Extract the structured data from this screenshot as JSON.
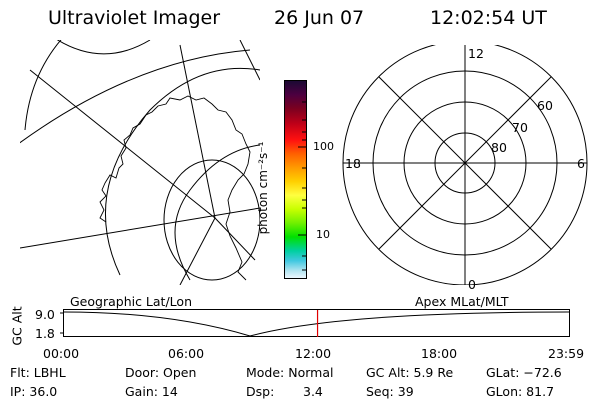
{
  "header": {
    "title": "Ultraviolet Imager",
    "date": "26 Jun 07",
    "time": "12:02:54 UT"
  },
  "colorbar": {
    "label": "photon cm⁻²s⁻¹",
    "tick_100": "100",
    "tick_10": "10",
    "stops": [
      "#1a0a33",
      "#4b0040",
      "#7a0020",
      "#c00018",
      "#ff1010",
      "#ff6000",
      "#ff9a00",
      "#ffd000",
      "#ffff40",
      "#c8ff00",
      "#70f000",
      "#00e000",
      "#00d0a0",
      "#40c8e0",
      "#b0e4f0",
      "#f0f8ff"
    ]
  },
  "polar": {
    "top": "12",
    "left": "18",
    "right": "6",
    "bottom": "0",
    "r60": "60",
    "r70": "70",
    "r80": "80"
  },
  "altitude_plot": {
    "left_label": "Geographic Lat/Lon",
    "right_label": "Apex MLat/MLT",
    "axis_label": "GC Alt",
    "y_max": "9.0",
    "y_min": "1.8",
    "x_ticks": [
      "00:00",
      "06:00",
      "12:00",
      "18:00",
      "23:59"
    ],
    "current_time_marker": 12.05,
    "marker_color": "#e00000"
  },
  "info": {
    "filter": "Flt: LBHL",
    "ip": "IP: 36.0",
    "door": "Door: Open",
    "gain": "Gain: 14",
    "mode": "Mode: Normal",
    "dsp_label": "Dsp:",
    "dsp_value": "3.4",
    "gc_alt": "GC Alt: 5.9 Re",
    "seq": "Seq: 39",
    "glat": "GLat: −72.6",
    "glon": "GLon: 81.7"
  }
}
